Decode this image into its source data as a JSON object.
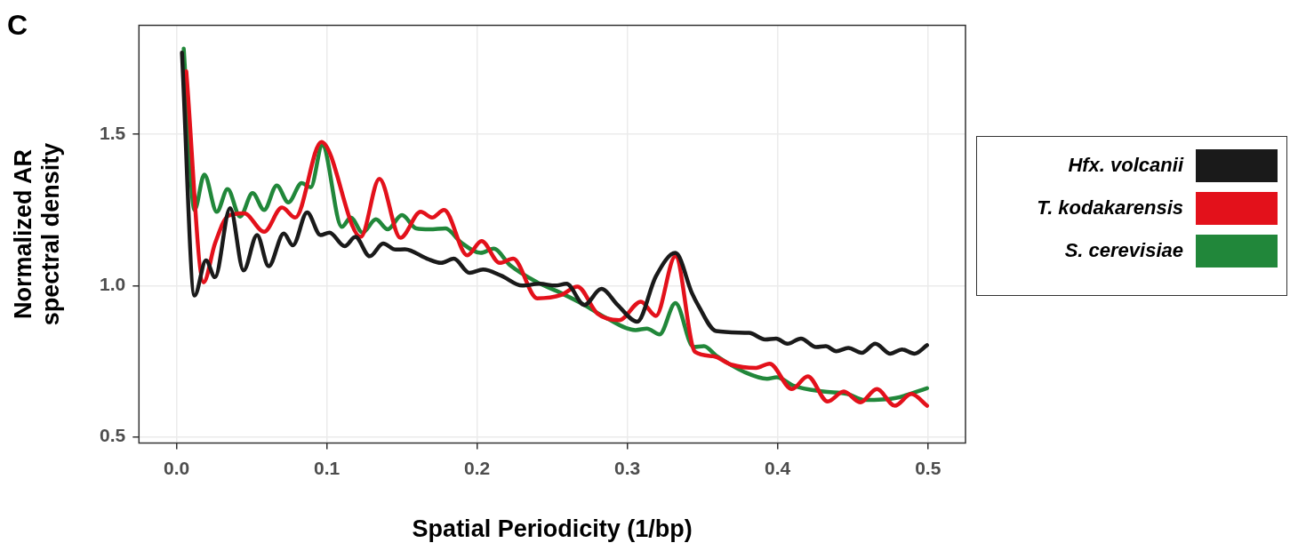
{
  "chart_data": {
    "type": "line",
    "xlabel": "Spatial Periodicity (1/bp)",
    "ylabel": "Normalized AR\nspectral density",
    "annotations": [
      "C"
    ],
    "xlim": [
      -0.025,
      0.525
    ],
    "ylim": [
      0.48,
      1.86
    ],
    "xticks": [
      {
        "value": 0,
        "label": "0.0"
      },
      {
        "value": 0.1,
        "label": "0.1"
      },
      {
        "value": 0.2,
        "label": "0.2"
      },
      {
        "value": 0.3,
        "label": "0.3"
      },
      {
        "value": 0.4,
        "label": "0.4"
      },
      {
        "value": 0.5,
        "label": "0.5"
      }
    ],
    "yticks": [
      {
        "value": 0.5,
        "label": "0.5"
      },
      {
        "value": 1,
        "label": "1.0"
      },
      {
        "value": 1.5,
        "label": "1.5"
      }
    ],
    "grid": true,
    "legend": "right",
    "marker": "none",
    "line_style": "solid",
    "series": [
      {
        "name": "Hfx. volcanii",
        "color": "#1a1a1a",
        "x": [
          0.0036,
          0.012,
          0.0196,
          0.0256,
          0.0357,
          0.0446,
          0.0536,
          0.0613,
          0.0714,
          0.0774,
          0.0869,
          0.0958,
          0.1018,
          0.1119,
          0.119,
          0.1286,
          0.1375,
          0.1458,
          0.152,
          0.1667,
          0.176,
          0.1845,
          0.195,
          0.204,
          0.216,
          0.23,
          0.2417,
          0.252,
          0.2595,
          0.2714,
          0.2827,
          0.2935,
          0.3065,
          0.319,
          0.332,
          0.343,
          0.347,
          0.359,
          0.381,
          0.3917,
          0.399,
          0.4065,
          0.4155,
          0.4256,
          0.432,
          0.439,
          0.447,
          0.456,
          0.465,
          0.475,
          0.4827,
          0.491,
          0.4994
        ],
        "values": [
          1.77,
          0.967,
          1.083,
          1.028,
          1.256,
          1.05,
          1.167,
          1.064,
          1.172,
          1.133,
          1.242,
          1.167,
          1.175,
          1.13,
          1.161,
          1.097,
          1.139,
          1.119,
          1.12,
          1.089,
          1.075,
          1.089,
          1.042,
          1.053,
          1.033,
          1.0,
          1.006,
          1.0,
          1.006,
          0.936,
          0.989,
          0.936,
          0.881,
          1.031,
          1.108,
          0.975,
          0.936,
          0.85,
          0.844,
          0.822,
          0.825,
          0.808,
          0.825,
          0.797,
          0.8,
          0.783,
          0.794,
          0.778,
          0.808,
          0.775,
          0.789,
          0.775,
          0.803
        ]
      },
      {
        "name": "T. kodakarensis",
        "color": "#e3111b",
        "x": [
          0.0065,
          0.018,
          0.0256,
          0.0345,
          0.045,
          0.0583,
          0.0702,
          0.079,
          0.0964,
          0.1226,
          0.135,
          0.149,
          0.1625,
          0.17,
          0.178,
          0.1935,
          0.203,
          0.215,
          0.224,
          0.24,
          0.256,
          0.2667,
          0.28,
          0.2946,
          0.309,
          0.319,
          0.332,
          0.345,
          0.357,
          0.369,
          0.3857,
          0.3946,
          0.4095,
          0.42,
          0.4333,
          0.444,
          0.455,
          0.466,
          0.478,
          0.489,
          0.4994
        ],
        "values": [
          1.708,
          1.011,
          1.139,
          1.231,
          1.239,
          1.178,
          1.258,
          1.225,
          1.475,
          1.161,
          1.353,
          1.158,
          1.244,
          1.225,
          1.25,
          1.1,
          1.147,
          1.075,
          1.089,
          0.958,
          0.969,
          0.997,
          0.908,
          0.886,
          0.947,
          0.9,
          1.097,
          0.781,
          0.767,
          0.739,
          0.728,
          0.742,
          0.658,
          0.7,
          0.617,
          0.65,
          0.614,
          0.658,
          0.603,
          0.642,
          0.603
        ]
      },
      {
        "name": "S. cerevisiae",
        "color": "#21873a",
        "x": [
          0.0048,
          0.012,
          0.0185,
          0.0268,
          0.034,
          0.0423,
          0.0506,
          0.0583,
          0.0667,
          0.0744,
          0.0833,
          0.0893,
          0.097,
          0.11,
          0.116,
          0.1238,
          0.1327,
          0.1405,
          0.15,
          0.1595,
          0.1685,
          0.179,
          0.189,
          0.2024,
          0.211,
          0.222,
          0.24,
          0.256,
          0.2714,
          0.2857,
          0.3054,
          0.313,
          0.3214,
          0.332,
          0.344,
          0.351,
          0.359,
          0.378,
          0.393,
          0.3994,
          0.4107,
          0.4304,
          0.4464,
          0.458,
          0.478,
          0.4994
        ],
        "values": [
          1.783,
          1.25,
          1.367,
          1.244,
          1.319,
          1.228,
          1.306,
          1.25,
          1.331,
          1.275,
          1.339,
          1.325,
          1.464,
          1.194,
          1.225,
          1.175,
          1.219,
          1.186,
          1.233,
          1.189,
          1.186,
          1.189,
          1.144,
          1.108,
          1.122,
          1.067,
          1.011,
          0.975,
          0.936,
          0.894,
          0.853,
          0.858,
          0.839,
          0.942,
          0.797,
          0.8,
          0.769,
          0.714,
          0.692,
          0.697,
          0.669,
          0.65,
          0.642,
          0.622,
          0.628,
          0.661
        ]
      }
    ]
  }
}
